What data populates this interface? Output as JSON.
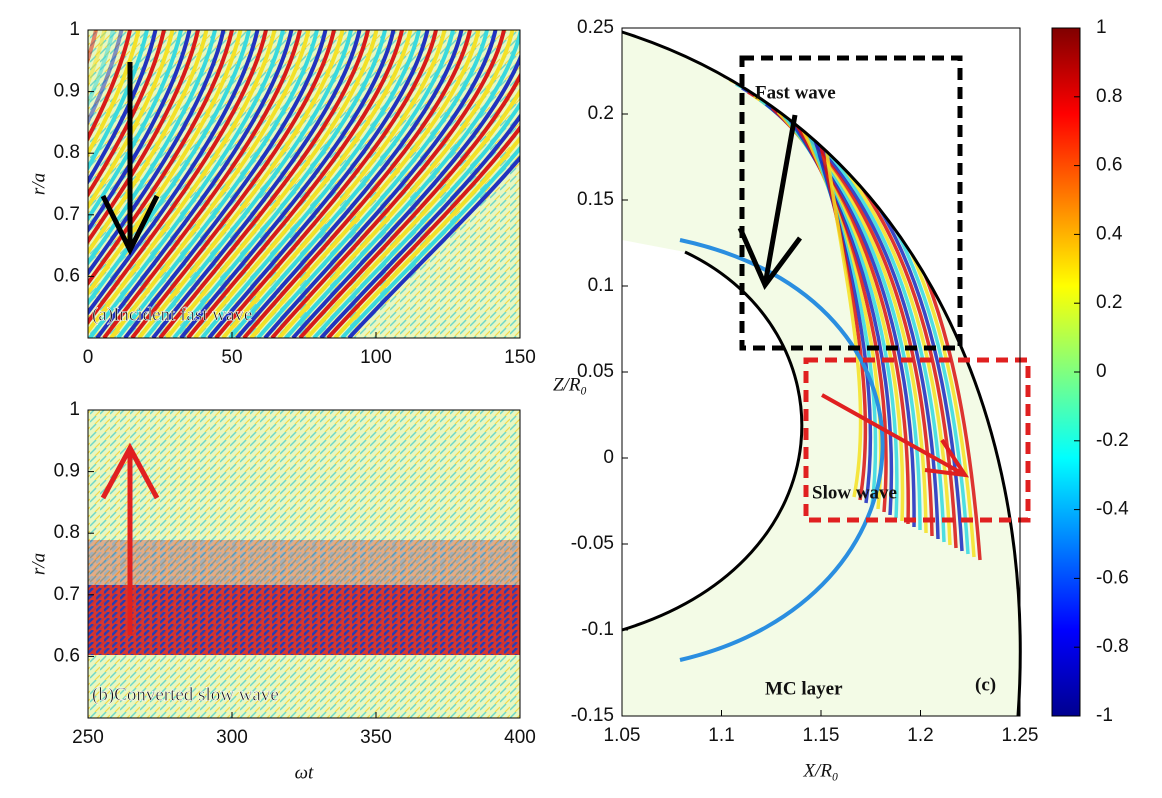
{
  "chart_data": [
    {
      "type": "contour",
      "annotation": "(a)Incident fast wave",
      "ylabel": "r/a",
      "xlim": [
        0,
        150
      ],
      "xticks": [
        0,
        50,
        100,
        150
      ],
      "ylim": [
        0.5,
        1
      ],
      "yticks": [
        0.6,
        0.7,
        0.8,
        0.9,
        1
      ]
    },
    {
      "type": "contour",
      "annotation": "(b)Converted slow wave",
      "ylabel": "r/a",
      "xlabel": "ωt",
      "xlim": [
        250,
        400
      ],
      "xticks": [
        250,
        300,
        350,
        400
      ],
      "ylim": [
        0.5,
        1
      ],
      "yticks": [
        0.6,
        0.7,
        0.8,
        0.9,
        1
      ]
    },
    {
      "type": "contour",
      "ylabel": "Z/R₀",
      "xlabel": "X/R₀",
      "annotations": [
        "Fast wave",
        "Slow wave",
        "MC layer",
        "(c)"
      ],
      "xlim": [
        1.05,
        1.25
      ],
      "xticks": [
        1.05,
        1.1,
        1.15,
        1.2,
        1.25
      ],
      "ylim": [
        -0.15,
        0.25
      ],
      "yticks": [
        -0.15,
        -0.1,
        -0.05,
        0,
        0.05,
        0.1,
        0.15,
        0.2,
        0.25
      ],
      "colorbar": {
        "lim": [
          -1,
          1
        ],
        "ticks": [
          -1,
          -0.8,
          -0.6,
          -0.4,
          -0.2,
          0,
          0.2,
          0.4,
          0.6,
          0.8,
          1
        ]
      }
    }
  ]
}
